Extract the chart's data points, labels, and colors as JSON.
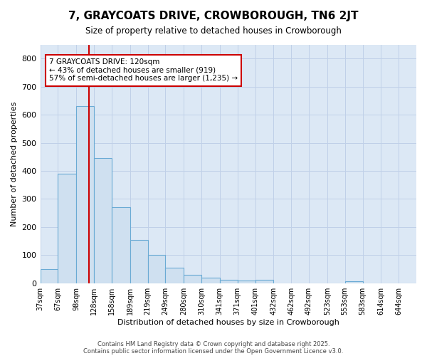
{
  "title": "7, GRAYCOATS DRIVE, CROWBOROUGH, TN6 2JT",
  "subtitle": "Size of property relative to detached houses in Crowborough",
  "xlabel": "Distribution of detached houses by size in Crowborough",
  "ylabel": "Number of detached properties",
  "bin_labels": [
    "37sqm",
    "67sqm",
    "98sqm",
    "128sqm",
    "158sqm",
    "189sqm",
    "219sqm",
    "249sqm",
    "280sqm",
    "310sqm",
    "341sqm",
    "371sqm",
    "401sqm",
    "432sqm",
    "462sqm",
    "492sqm",
    "523sqm",
    "553sqm",
    "583sqm",
    "614sqm",
    "644sqm"
  ],
  "bin_edges": [
    37,
    67,
    98,
    128,
    158,
    189,
    219,
    249,
    280,
    310,
    341,
    371,
    401,
    432,
    462,
    492,
    523,
    553,
    583,
    614,
    644
  ],
  "bar_heights": [
    50,
    390,
    630,
    445,
    270,
    155,
    100,
    55,
    30,
    20,
    12,
    10,
    13,
    0,
    0,
    0,
    0,
    7,
    0,
    0,
    0
  ],
  "bar_color": "#cfe0f0",
  "bar_edge_color": "#6aaad4",
  "vline_x": 120,
  "vline_color": "#cc0000",
  "annotation_text": "7 GRAYCOATS DRIVE: 120sqm\n← 43% of detached houses are smaller (919)\n57% of semi-detached houses are larger (1,235) →",
  "annotation_box_facecolor": "#ffffff",
  "annotation_box_edgecolor": "#cc0000",
  "ylim": [
    0,
    850
  ],
  "yticks": [
    0,
    100,
    200,
    300,
    400,
    500,
    600,
    700,
    800
  ],
  "plot_bg_color": "#dce8f5",
  "fig_bg_color": "#ffffff",
  "grid_color": "#c0d0e8",
  "footer_line1": "Contains HM Land Registry data © Crown copyright and database right 2025.",
  "footer_line2": "Contains public sector information licensed under the Open Government Licence v3.0."
}
